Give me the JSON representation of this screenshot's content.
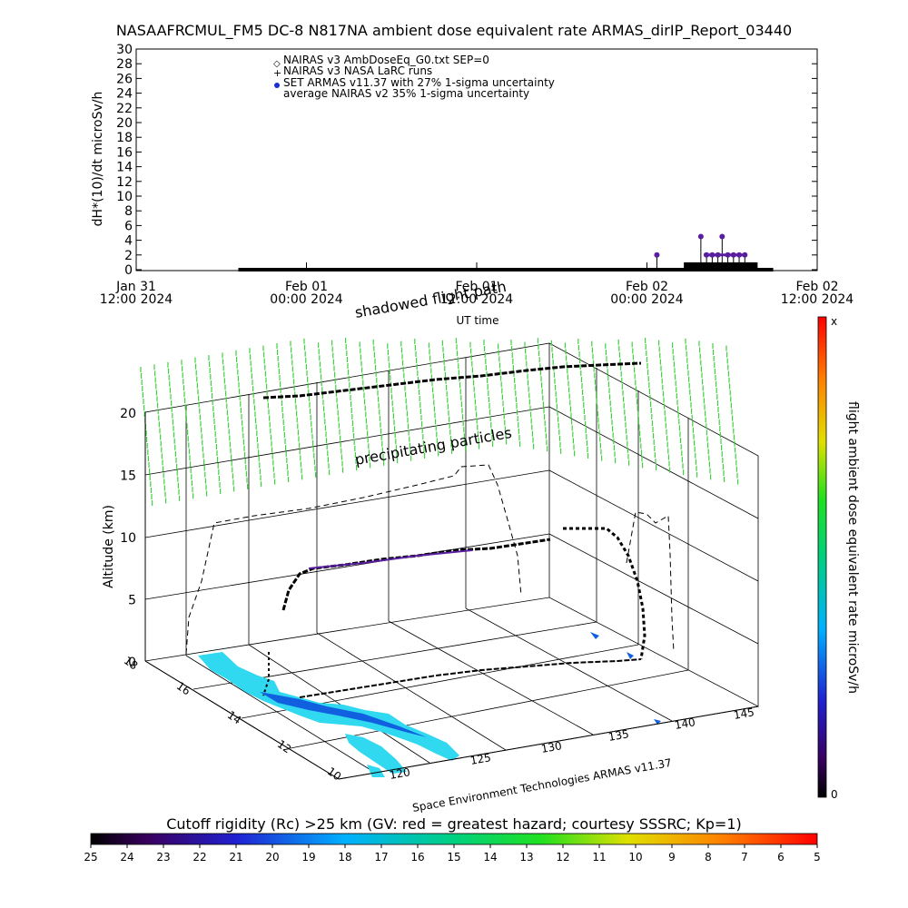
{
  "title": "NASAAFRCMUL_FM5 DC-8   N817NA ambient dose equivalent rate ARMAS_dirIP_Report_03440",
  "colors": {
    "curtain": "#40d040",
    "track": "#000000",
    "dose_marker": "#5a1fa0",
    "land": "#30d8f0",
    "land_dark": "#1060e0"
  },
  "chart_data": [
    {
      "type": "line",
      "title": "",
      "ylabel": "dH*(10)/dt microSv/h",
      "xlabel": "UT time",
      "ylim": [
        0,
        30
      ],
      "yticks": [
        "0",
        "2",
        "4",
        "6",
        "8",
        "10",
        "12",
        "14",
        "16",
        "18",
        "20",
        "22",
        "24",
        "26",
        "28",
        "30"
      ],
      "xticks": [
        {
          "line1": "Jan 31",
          "line2": "12:00 2024"
        },
        {
          "line1": "Feb 01",
          "line2": "00:00 2024"
        },
        {
          "line1": "Feb 01",
          "line2": "12:00 2024"
        },
        {
          "line1": "Feb 02",
          "line2": "00:00 2024"
        },
        {
          "line1": "Feb 02",
          "line2": "12:00 2024"
        }
      ],
      "legend": [
        {
          "symbol": "◇",
          "label": "NAIRAS v3 AmbDoseEq_G0.txt SEP=0"
        },
        {
          "symbol": "+",
          "label": "NAIRAS v3 NASA LaRC runs"
        },
        {
          "symbol": "●",
          "label": "SET ARMAS v11.37 with 27% 1-sigma uncertainty"
        },
        {
          "symbol": "",
          "label": "average NAIRAS v2 35% 1-sigma uncertainty"
        }
      ],
      "legend_position": "top-center",
      "series": [
        {
          "name": "SET ARMAS v11.37 with 27% 1-sigma uncertainty",
          "x_hours": [
            29.5,
            32.6,
            33.0,
            33.4,
            33.8,
            34.1,
            34.5,
            34.9,
            35.3,
            35.7
          ],
          "y": [
            2.0,
            4.5,
            2.0,
            2.0,
            2.0,
            4.5,
            2.0,
            2.0,
            2.0,
            2.0
          ]
        }
      ],
      "baseline_x_hours": [
        0,
        37.7
      ],
      "baseline_y": 0
    },
    {
      "type": "scatter",
      "title": "",
      "zlabel": "Altitude (km)",
      "zlim": [
        0,
        20
      ],
      "zticks": [
        "0",
        "5",
        "10",
        "15",
        "20"
      ],
      "lat_ticks": [
        "10",
        "12",
        "14",
        "16",
        "18"
      ],
      "lon_ticks": [
        "120",
        "125",
        "130",
        "135",
        "140",
        "145"
      ],
      "annotations": [
        "shadowed flight path",
        "precipitating particles"
      ],
      "credit": "Space Environment Technologies ARMAS v11.37"
    }
  ],
  "colorbar_right": {
    "label": "flight ambient dose equivalent rate microSv/h",
    "top_label": "x",
    "bottom_label": "0"
  },
  "colorbar_bottom": {
    "label": "Cutoff rigidity (Rc) >25 km (GV: red = greatest hazard; courtesy SSSRC; Kp=1)",
    "ticks": [
      "25",
      "24",
      "23",
      "22",
      "21",
      "20",
      "19",
      "18",
      "17",
      "16",
      "15",
      "14",
      "13",
      "12",
      "11",
      "10",
      "9",
      "8",
      "7",
      "6",
      "5"
    ]
  }
}
